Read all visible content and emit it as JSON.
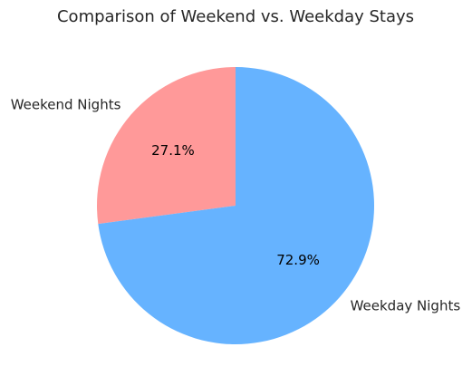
{
  "chart_data": {
    "type": "pie",
    "title": "Comparison of Weekend vs. Weekday Stays",
    "slices": [
      {
        "label": "Weekend Nights",
        "value": 27.1,
        "pct_label": "27.1%",
        "color": "#ff9999"
      },
      {
        "label": "Weekday Nights",
        "value": 72.9,
        "pct_label": "72.9%",
        "color": "#66b3ff"
      }
    ],
    "start_angle_deg": 90,
    "direction": "counterclockwise",
    "legend": "none"
  }
}
